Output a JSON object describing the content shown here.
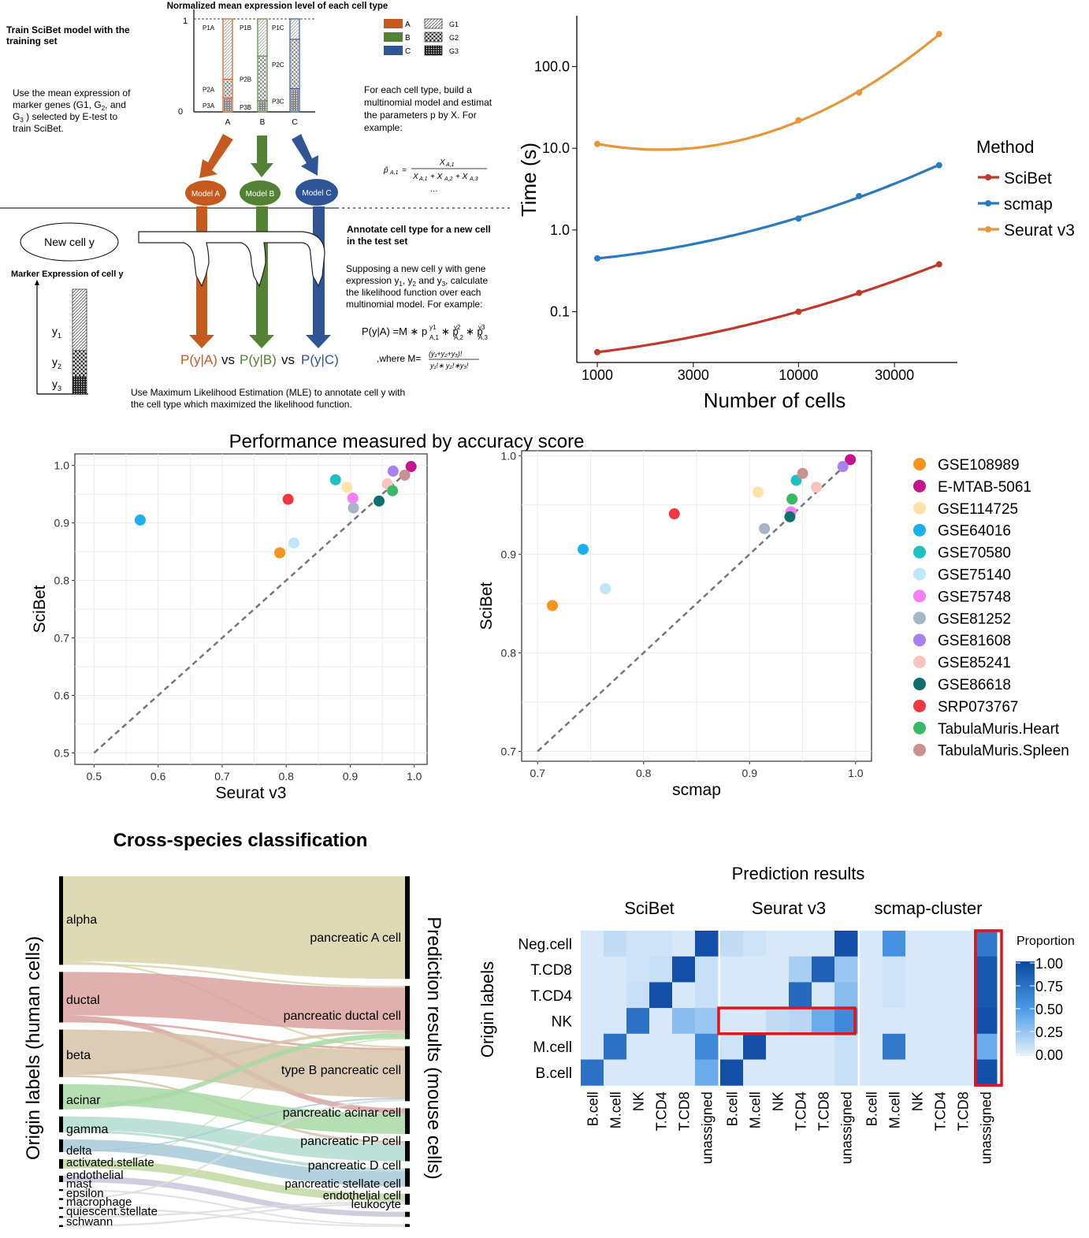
{
  "colors": {
    "A": "#c65a1e",
    "B": "#548235",
    "C": "#2f5597",
    "scibet": "#c0392b",
    "scmap": "#2a7abf",
    "seurat": "#e8963a"
  },
  "schematic": {
    "bar_title": "Normalized mean expression level of each cell type",
    "y_top": "1",
    "y_bottom": "0",
    "bar_x_labels": [
      "A",
      "B",
      "C"
    ],
    "bar_segment_labels": {
      "A": [
        "P1A",
        "P2A",
        "P3A"
      ],
      "B": [
        "P1B",
        "P2B",
        "P3B"
      ],
      "C": [
        "P1C",
        "P2C",
        "P3C"
      ]
    },
    "legend_types": [
      "A",
      "B",
      "C"
    ],
    "legend_genes": [
      "G1",
      "G2",
      "G3"
    ],
    "train_title": "Train SciBet model with the training set",
    "train_desc": "Use the mean expression of marker genes (G1, G2, and G3 ) selected by E-test to train SciBet.",
    "multinomial_desc": "For each cell type, build a multinomial model and estimat the parameters p by X. For example:",
    "formula_p": "p̂A,1 = XA,1 / (XA,1 + XA,2 + XA,3)",
    "models": [
      "Model A",
      "Model B",
      "Model C"
    ],
    "new_cell": "New cell y",
    "marker_title": "Marker Expression of cell y",
    "y_labels": [
      "y1",
      "y2",
      "y3"
    ],
    "annotate_title": "Annotate cell type for a new cell in the test set",
    "annotate_desc": "Supposing a new cell y with gene expression y1, y2 and y3, calculate the likelihood function over each multinomial model. For example:",
    "likelihood_formula": "P(y|A) = M * pA,1^y1 * pA,2^y2 * pA,3^y3",
    "where_formula": ",where M = (y1+y2+y3)! / (y1! y2! y3!)",
    "compare": [
      "P(y|A)",
      "vs",
      "P(y|B)",
      "vs",
      "P(y|C)"
    ],
    "mle_text": "Use Maximum Likelihood Estimation (MLE) to annotate cell y with the cell type which maximized the likelihood function."
  },
  "chart_data": [
    {
      "type": "line",
      "xlabel": "Number of cells",
      "ylabel": "Time (s)",
      "x_scale": "log",
      "y_scale": "log",
      "x_ticks": [
        "1000",
        "3000",
        "10000",
        "30000"
      ],
      "y_ticks": [
        "0.1",
        "1.0",
        "10.0",
        "100.0"
      ],
      "legend_title": "Method",
      "x": [
        1000,
        10000,
        20000,
        50000
      ],
      "series": [
        {
          "name": "SciBet",
          "values": [
            0.032,
            0.1,
            0.17,
            0.38
          ]
        },
        {
          "name": "scmap",
          "values": [
            0.45,
            1.38,
            2.6,
            6.2
          ]
        },
        {
          "name": "Seurat v3",
          "values": [
            11.3,
            22.0,
            48.0,
            250.0
          ]
        }
      ]
    },
    {
      "type": "scatter",
      "title": "Performance measured by accuracy score",
      "panels": [
        {
          "xlabel": "Seurat v3",
          "ylabel": "SciBet",
          "xlim": [
            0.47,
            1.02
          ],
          "ylim": [
            0.48,
            1.02
          ],
          "x_ticks": [
            "0.5",
            "0.6",
            "0.7",
            "0.8",
            "0.9",
            "1.0"
          ],
          "y_ticks": [
            "0.5",
            "0.6",
            "0.7",
            "0.8",
            "0.9",
            "1.0"
          ],
          "points": [
            {
              "name": "GSE108989",
              "x": 0.79,
              "y": 0.848
            },
            {
              "name": "E-MTAB-5061",
              "x": 0.995,
              "y": 0.998
            },
            {
              "name": "GSE114725",
              "x": 0.895,
              "y": 0.962
            },
            {
              "name": "GSE64016",
              "x": 0.572,
              "y": 0.905
            },
            {
              "name": "GSE70580",
              "x": 0.877,
              "y": 0.975
            },
            {
              "name": "GSE75140",
              "x": 0.812,
              "y": 0.865
            },
            {
              "name": "GSE75748",
              "x": 0.904,
              "y": 0.943
            },
            {
              "name": "GSE81252",
              "x": 0.905,
              "y": 0.926
            },
            {
              "name": "GSE81608",
              "x": 0.967,
              "y": 0.99
            },
            {
              "name": "GSE85241",
              "x": 0.958,
              "y": 0.968
            },
            {
              "name": "GSE86618",
              "x": 0.945,
              "y": 0.938
            },
            {
              "name": "SRP073767",
              "x": 0.803,
              "y": 0.941
            },
            {
              "name": "TabulaMuris.Heart",
              "x": 0.966,
              "y": 0.956
            },
            {
              "name": "TabulaMuris.Spleen",
              "x": 0.985,
              "y": 0.983
            }
          ]
        },
        {
          "xlabel": "scmap",
          "ylabel": "SciBet",
          "xlim": [
            0.685,
            1.015
          ],
          "ylim": [
            0.69,
            1.005
          ],
          "x_ticks": [
            "0.7",
            "0.8",
            "0.9",
            "1.0"
          ],
          "y_ticks": [
            "0.7",
            "0.8",
            "0.9",
            "1.0"
          ],
          "points": [
            {
              "name": "GSE108989",
              "x": 0.714,
              "y": 0.848
            },
            {
              "name": "E-MTAB-5061",
              "x": 0.995,
              "y": 0.996
            },
            {
              "name": "GSE114725",
              "x": 0.908,
              "y": 0.963
            },
            {
              "name": "GSE64016",
              "x": 0.743,
              "y": 0.905
            },
            {
              "name": "GSE70580",
              "x": 0.944,
              "y": 0.975
            },
            {
              "name": "GSE75140",
              "x": 0.764,
              "y": 0.865
            },
            {
              "name": "GSE75748",
              "x": 0.939,
              "y": 0.943
            },
            {
              "name": "GSE81252",
              "x": 0.914,
              "y": 0.926
            },
            {
              "name": "GSE81608",
              "x": 0.988,
              "y": 0.989
            },
            {
              "name": "GSE85241",
              "x": 0.963,
              "y": 0.968
            },
            {
              "name": "GSE86618",
              "x": 0.938,
              "y": 0.938
            },
            {
              "name": "SRP073767",
              "x": 0.829,
              "y": 0.941
            },
            {
              "name": "TabulaMuris.Heart",
              "x": 0.94,
              "y": 0.956
            },
            {
              "name": "TabulaMuris.Spleen",
              "x": 0.95,
              "y": 0.982
            }
          ]
        }
      ],
      "legend": [
        {
          "name": "GSE108989",
          "color": "#f7941d"
        },
        {
          "name": "E-MTAB-5061",
          "color": "#c5158d"
        },
        {
          "name": "GSE114725",
          "color": "#fde3a7"
        },
        {
          "name": "GSE64016",
          "color": "#18b0f0"
        },
        {
          "name": "GSE70580",
          "color": "#1ec1c1"
        },
        {
          "name": "GSE75140",
          "color": "#bfe6fb"
        },
        {
          "name": "GSE75748",
          "color": "#f57ff3"
        },
        {
          "name": "GSE81252",
          "color": "#a7b5c7"
        },
        {
          "name": "GSE81608",
          "color": "#a781f0"
        },
        {
          "name": "GSE85241",
          "color": "#f9c3c0"
        },
        {
          "name": "GSE86618",
          "color": "#0f6e6e"
        },
        {
          "name": "SRP073767",
          "color": "#f0383f"
        },
        {
          "name": "TabulaMuris.Heart",
          "color": "#3bb769"
        },
        {
          "name": "TabulaMuris.Spleen",
          "color": "#c99290"
        }
      ]
    },
    {
      "type": "sankey",
      "title": "Cross-species classification",
      "left_axis_label": "Origin labels (human cells)",
      "right_axis_label": "Prediction results (mouse cells)",
      "left_nodes": [
        "alpha",
        "ductal",
        "beta",
        "acinar",
        "gamma",
        "delta",
        "activated.stellate",
        "endothelial",
        "mast",
        "epsilon",
        "macrophage",
        "quiescent.stellate",
        "schwann"
      ],
      "right_nodes": [
        "pancreatic A cell",
        "pancreatic ductal cell",
        "type B pancreatic cell",
        "pancreatic acinar cell",
        "pancreatic PP cell",
        "pancreatic D cell",
        "pancreatic stellate cell",
        "endothelial cell",
        "leukocyte"
      ]
    },
    {
      "type": "heatmap",
      "title": "Prediction results",
      "ylabel": "Origin labels",
      "groups": [
        "SciBet",
        "Seurat v3",
        "scmap-cluster"
      ],
      "rows": [
        "Neg.cell",
        "T.CD8",
        "T.CD4",
        "NK",
        "M.cell",
        "B.cell"
      ],
      "columns": [
        [
          "B.cell",
          "M.cell",
          "NK",
          "T.CD4",
          "T.CD8",
          "unassigned"
        ],
        [
          "B.cell",
          "M.cell",
          "NK",
          "T.CD4",
          "T.CD8",
          "unassigned"
        ],
        [
          "B.cell",
          "M.cell",
          "NK",
          "T.CD4",
          "T.CD8",
          "unassigned"
        ]
      ],
      "values": [
        [
          [
            0.05,
            0.12,
            0.08,
            0.08,
            0.05,
            0.95
          ],
          [
            0.05,
            0.05,
            0.08,
            0.1,
            0.95,
            0.1
          ],
          [
            0.05,
            0.05,
            0.1,
            0.95,
            0.05,
            0.1
          ],
          [
            0.05,
            0.05,
            0.75,
            0.05,
            0.3,
            0.25
          ],
          [
            0.05,
            0.75,
            0.05,
            0.05,
            0.05,
            0.6
          ],
          [
            0.75,
            0.05,
            0.05,
            0.05,
            0.05,
            0.4
          ]
        ],
        [
          [
            0.12,
            0.08,
            0.05,
            0.05,
            0.05,
            0.95
          ],
          [
            0.05,
            0.05,
            0.05,
            0.2,
            0.85,
            0.25
          ],
          [
            0.05,
            0.05,
            0.05,
            0.8,
            0.05,
            0.3
          ],
          [
            0.05,
            0.05,
            0.12,
            0.15,
            0.4,
            0.6
          ],
          [
            0.08,
            0.95,
            0.05,
            0.05,
            0.05,
            0.1
          ],
          [
            0.95,
            0.05,
            0.05,
            0.05,
            0.05,
            0.1
          ]
        ],
        [
          [
            0.05,
            0.55,
            0.05,
            0.05,
            0.05,
            0.7
          ],
          [
            0.05,
            0.08,
            0.05,
            0.05,
            0.05,
            0.9
          ],
          [
            0.05,
            0.08,
            0.05,
            0.05,
            0.05,
            0.9
          ],
          [
            0.05,
            0.05,
            0.05,
            0.05,
            0.05,
            0.95
          ],
          [
            0.05,
            0.7,
            0.05,
            0.05,
            0.05,
            0.4
          ],
          [
            0.05,
            0.05,
            0.05,
            0.05,
            0.05,
            0.95
          ]
        ]
      ],
      "colorbar_title": "Proportion",
      "colorbar_ticks": [
        "1.00",
        "0.75",
        "0.50",
        "0.25",
        "0.00"
      ],
      "low_color": "#e8f1fb",
      "high_color": "#0d47a1"
    }
  ]
}
